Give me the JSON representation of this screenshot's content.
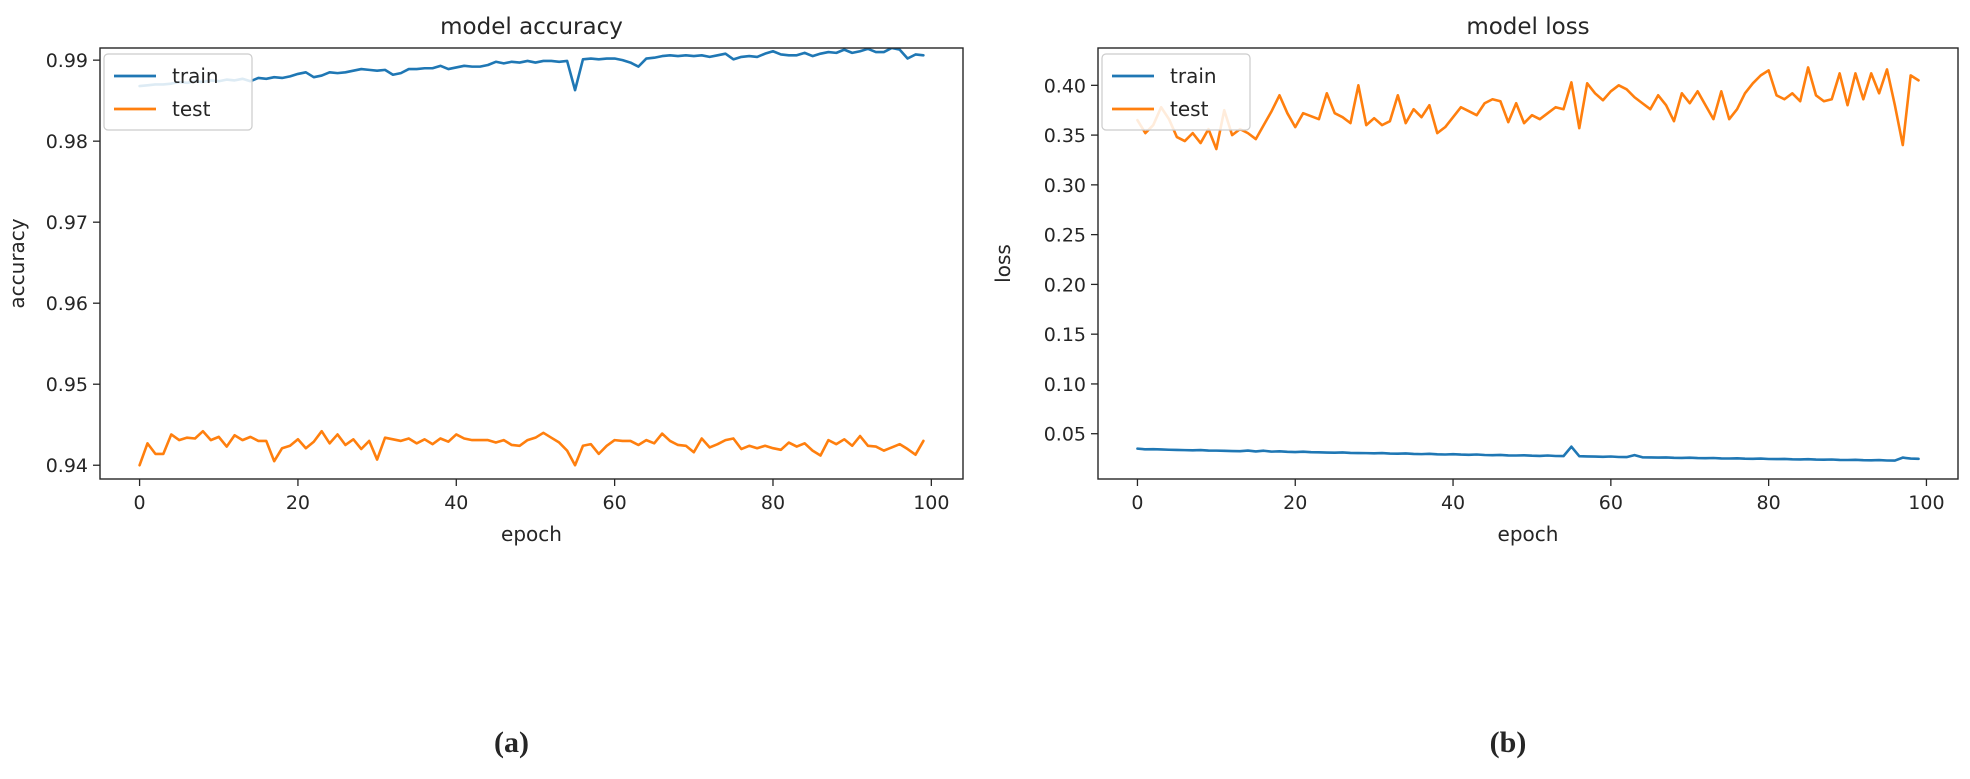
{
  "colors": {
    "train": "#1f77b4",
    "test": "#ff7f0e",
    "axis": "#262626",
    "background": "#ffffff"
  },
  "chart_data": [
    {
      "type": "line",
      "panel_label": "(a)",
      "title": "model accuracy",
      "xlabel": "epoch",
      "ylabel": "accuracy",
      "xlim": [
        -5,
        104
      ],
      "ylim": [
        0.9383,
        0.9915
      ],
      "xticks": [
        0,
        20,
        40,
        60,
        80,
        100
      ],
      "yticks": [
        0.94,
        0.95,
        0.96,
        0.97,
        0.98,
        0.99
      ],
      "ytick_labels": [
        "0.94",
        "0.95",
        "0.96",
        "0.97",
        "0.98",
        "0.99"
      ],
      "grid": false,
      "legend": {
        "position": "top-left",
        "entries": [
          "train",
          "test"
        ]
      },
      "series": [
        {
          "name": "train",
          "color": "#1f77b4",
          "values": [
            0.9868,
            0.9869,
            0.987,
            0.987,
            0.9871,
            0.9873,
            0.9872,
            0.9874,
            0.9873,
            0.9875,
            0.9874,
            0.9876,
            0.9875,
            0.9877,
            0.9874,
            0.9878,
            0.9877,
            0.9879,
            0.9878,
            0.988,
            0.9883,
            0.9885,
            0.9879,
            0.9881,
            0.9885,
            0.9884,
            0.9885,
            0.9887,
            0.9889,
            0.9888,
            0.9887,
            0.9888,
            0.9882,
            0.9884,
            0.9889,
            0.9889,
            0.989,
            0.989,
            0.9893,
            0.9889,
            0.9891,
            0.9893,
            0.9892,
            0.9892,
            0.9894,
            0.9898,
            0.9896,
            0.9898,
            0.9897,
            0.9899,
            0.9897,
            0.9899,
            0.9899,
            0.9898,
            0.9899,
            0.9863,
            0.9901,
            0.9902,
            0.9901,
            0.9902,
            0.9902,
            0.99,
            0.9897,
            0.9892,
            0.9902,
            0.9903,
            0.9905,
            0.9906,
            0.9905,
            0.9906,
            0.9905,
            0.9906,
            0.9904,
            0.9906,
            0.9908,
            0.9901,
            0.9904,
            0.9905,
            0.9904,
            0.9908,
            0.9911,
            0.9907,
            0.9906,
            0.9906,
            0.9909,
            0.9905,
            0.9908,
            0.991,
            0.9909,
            0.9913,
            0.9909,
            0.9911,
            0.9914,
            0.991,
            0.991,
            0.9915,
            0.9913,
            0.9902,
            0.9907,
            0.9906
          ]
        },
        {
          "name": "test",
          "color": "#ff7f0e",
          "values": [
            0.94,
            0.9427,
            0.9414,
            0.9414,
            0.9438,
            0.9431,
            0.9434,
            0.9433,
            0.9442,
            0.9431,
            0.9435,
            0.9423,
            0.9437,
            0.9431,
            0.9435,
            0.943,
            0.943,
            0.9405,
            0.9421,
            0.9424,
            0.9432,
            0.9421,
            0.9429,
            0.9442,
            0.9427,
            0.9438,
            0.9425,
            0.9432,
            0.942,
            0.943,
            0.9407,
            0.9434,
            0.9432,
            0.943,
            0.9433,
            0.9427,
            0.9432,
            0.9426,
            0.9433,
            0.9429,
            0.9438,
            0.9433,
            0.9431,
            0.9431,
            0.9431,
            0.9428,
            0.9431,
            0.9425,
            0.9424,
            0.9431,
            0.9434,
            0.944,
            0.9434,
            0.9428,
            0.9418,
            0.94,
            0.9424,
            0.9426,
            0.9414,
            0.9424,
            0.9431,
            0.943,
            0.943,
            0.9425,
            0.9431,
            0.9427,
            0.9439,
            0.943,
            0.9425,
            0.9424,
            0.9416,
            0.9433,
            0.9422,
            0.9426,
            0.9431,
            0.9433,
            0.942,
            0.9424,
            0.9421,
            0.9424,
            0.9421,
            0.9419,
            0.9428,
            0.9423,
            0.9427,
            0.9418,
            0.9412,
            0.9431,
            0.9426,
            0.9432,
            0.9424,
            0.9436,
            0.9424,
            0.9423,
            0.9418,
            0.9422,
            0.9426,
            0.942,
            0.9413,
            0.943
          ]
        }
      ]
    },
    {
      "type": "line",
      "panel_label": "(b)",
      "title": "model loss",
      "xlabel": "epoch",
      "ylabel": "loss",
      "xlim": [
        -5,
        104
      ],
      "ylim": [
        0.0045,
        0.4375
      ],
      "xticks": [
        0,
        20,
        40,
        60,
        80,
        100
      ],
      "yticks": [
        0.05,
        0.1,
        0.15,
        0.2,
        0.25,
        0.3,
        0.35,
        0.4
      ],
      "ytick_labels": [
        "0.05",
        "0.10",
        "0.15",
        "0.20",
        "0.25",
        "0.30",
        "0.35",
        "0.40"
      ],
      "grid": false,
      "legend": {
        "position": "top-left",
        "entries": [
          "train",
          "test"
        ]
      },
      "series": [
        {
          "name": "train",
          "color": "#1f77b4",
          "values": [
            0.035,
            0.0343,
            0.0345,
            0.0342,
            0.0339,
            0.0337,
            0.0335,
            0.0333,
            0.0336,
            0.0331,
            0.033,
            0.0328,
            0.0326,
            0.0324,
            0.0331,
            0.0322,
            0.0329,
            0.032,
            0.0323,
            0.0318,
            0.0316,
            0.0319,
            0.0314,
            0.0313,
            0.0311,
            0.0309,
            0.0312,
            0.0307,
            0.0306,
            0.0305,
            0.0303,
            0.0306,
            0.0301,
            0.0299,
            0.0302,
            0.0297,
            0.0295,
            0.0298,
            0.0293,
            0.0291,
            0.0294,
            0.029,
            0.0288,
            0.0291,
            0.0286,
            0.0284,
            0.0287,
            0.0282,
            0.0281,
            0.0283,
            0.0279,
            0.0277,
            0.0281,
            0.0276,
            0.0275,
            0.037,
            0.0274,
            0.0272,
            0.027,
            0.0268,
            0.0271,
            0.0266,
            0.0265,
            0.0285,
            0.0263,
            0.0262,
            0.026,
            0.0262,
            0.0258,
            0.0257,
            0.0259,
            0.0255,
            0.0254,
            0.0256,
            0.0252,
            0.0251,
            0.0253,
            0.0249,
            0.0248,
            0.025,
            0.0246,
            0.0245,
            0.0247,
            0.0243,
            0.0242,
            0.0244,
            0.024,
            0.0239,
            0.0241,
            0.0237,
            0.0236,
            0.0238,
            0.0234,
            0.0233,
            0.0235,
            0.0231,
            0.023,
            0.026,
            0.025,
            0.0248
          ]
        },
        {
          "name": "test",
          "color": "#ff7f0e",
          "values": [
            0.365,
            0.352,
            0.36,
            0.378,
            0.366,
            0.348,
            0.344,
            0.352,
            0.342,
            0.356,
            0.336,
            0.375,
            0.35,
            0.356,
            0.352,
            0.346,
            0.36,
            0.374,
            0.39,
            0.372,
            0.358,
            0.372,
            0.369,
            0.366,
            0.392,
            0.372,
            0.368,
            0.362,
            0.4,
            0.36,
            0.367,
            0.36,
            0.364,
            0.39,
            0.362,
            0.376,
            0.368,
            0.38,
            0.352,
            0.358,
            0.368,
            0.378,
            0.374,
            0.37,
            0.382,
            0.386,
            0.384,
            0.363,
            0.382,
            0.362,
            0.37,
            0.366,
            0.372,
            0.378,
            0.376,
            0.403,
            0.357,
            0.402,
            0.392,
            0.385,
            0.394,
            0.4,
            0.396,
            0.388,
            0.382,
            0.376,
            0.39,
            0.38,
            0.364,
            0.392,
            0.382,
            0.394,
            0.38,
            0.366,
            0.394,
            0.366,
            0.376,
            0.392,
            0.402,
            0.41,
            0.415,
            0.39,
            0.386,
            0.392,
            0.384,
            0.418,
            0.39,
            0.384,
            0.386,
            0.412,
            0.38,
            0.412,
            0.386,
            0.412,
            0.392,
            0.416,
            0.38,
            0.34,
            0.41,
            0.405
          ]
        }
      ]
    }
  ]
}
